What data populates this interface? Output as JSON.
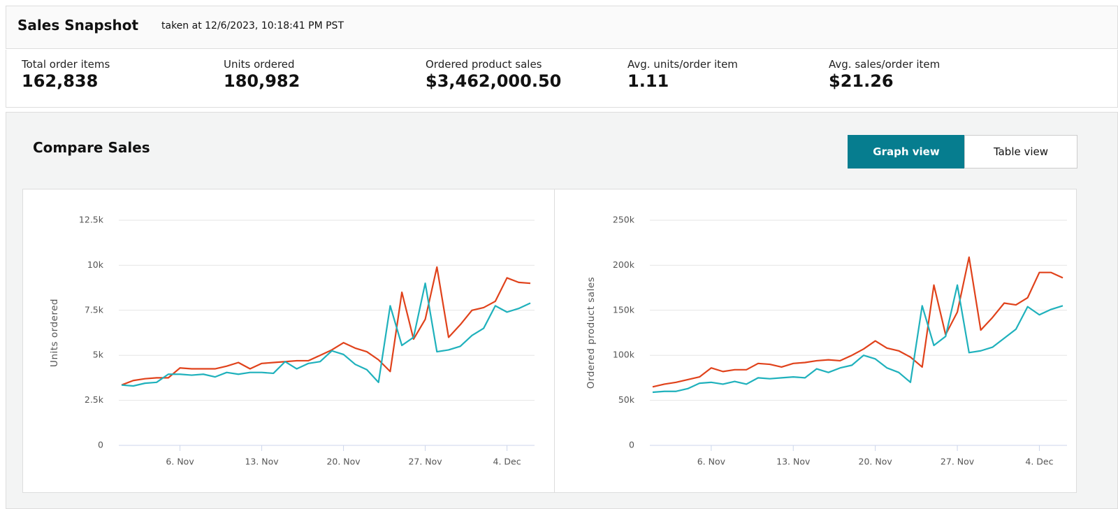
{
  "header": {
    "title": "Sales Snapshot",
    "subtitle": "taken at 12/6/2023, 10:18:41 PM PST"
  },
  "metrics": [
    {
      "label": "Total order items",
      "value": "162,838"
    },
    {
      "label": "Units ordered",
      "value": "180,982"
    },
    {
      "label": "Ordered product sales",
      "value": "$3,462,000.50"
    },
    {
      "label": "Avg. units/order item",
      "value": "1.11"
    },
    {
      "label": "Avg. sales/order item",
      "value": "$21.26"
    }
  ],
  "compare": {
    "title": "Compare Sales",
    "buttons": [
      "Graph view",
      "Table view"
    ]
  },
  "chart_data": [
    {
      "type": "line",
      "ylabel": "Units ordered",
      "categories": [
        null,
        null,
        null,
        null,
        null,
        "6. Nov",
        null,
        null,
        null,
        null,
        null,
        null,
        "13. Nov",
        null,
        null,
        null,
        null,
        null,
        null,
        "20. Nov",
        null,
        null,
        null,
        null,
        null,
        null,
        "27. Nov",
        null,
        null,
        null,
        null,
        null,
        null,
        "4. Dec",
        null,
        null
      ],
      "series": [
        {
          "color": "#e0421b",
          "values": [
            3350,
            3600,
            3700,
            3750,
            3750,
            4300,
            4250,
            4250,
            4250,
            4400,
            4600,
            4250,
            4550,
            4600,
            4650,
            4700,
            4700,
            5000,
            5300,
            5700,
            5400,
            5200,
            4750,
            4100,
            8500,
            5900,
            7000,
            9900,
            6000,
            6700,
            7500,
            7650,
            8000,
            9300,
            9050,
            9000
          ]
        },
        {
          "color": "#1fb1bc",
          "values": [
            3350,
            3300,
            3450,
            3500,
            3950,
            3950,
            3900,
            3950,
            3800,
            4050,
            3950,
            4050,
            4050,
            4000,
            4650,
            4250,
            4550,
            4650,
            5250,
            5050,
            4500,
            4200,
            3500,
            7750,
            5550,
            6000,
            9000,
            5200,
            5300,
            5500,
            6100,
            6500,
            7750,
            7400,
            7600,
            7900
          ]
        }
      ],
      "ylim": [
        0,
        12500
      ],
      "yticks": [
        0,
        {
          "value": 2500,
          "label": "2.5k"
        },
        {
          "value": 5000,
          "label": "5k"
        },
        {
          "value": 7500,
          "label": "7.5k"
        },
        {
          "value": 10000,
          "label": "10k"
        },
        {
          "value": 12500,
          "label": "12.5k"
        }
      ],
      "grid": true
    },
    {
      "type": "line",
      "ylabel": "Ordered product sales",
      "categories": [
        null,
        null,
        null,
        null,
        null,
        "6. Nov",
        null,
        null,
        null,
        null,
        null,
        null,
        "13. Nov",
        null,
        null,
        null,
        null,
        null,
        null,
        "20. Nov",
        null,
        null,
        null,
        null,
        null,
        null,
        "27. Nov",
        null,
        null,
        null,
        null,
        null,
        null,
        "4. Dec",
        null,
        null
      ],
      "series": [
        {
          "color": "#e0421b",
          "values": [
            65000,
            68000,
            70000,
            73000,
            76000,
            86000,
            82000,
            84000,
            84000,
            91000,
            90000,
            87000,
            91000,
            92000,
            94000,
            95000,
            94000,
            100000,
            107000,
            116000,
            108000,
            105000,
            98000,
            87000,
            178000,
            123000,
            148000,
            209000,
            128000,
            142000,
            158000,
            156000,
            164000,
            192000,
            192000,
            186000
          ]
        },
        {
          "color": "#1fb1bc",
          "values": [
            59000,
            60000,
            60000,
            63000,
            69000,
            70000,
            68000,
            71000,
            68000,
            75000,
            74000,
            75000,
            76000,
            75000,
            85000,
            81000,
            86000,
            89000,
            100000,
            96000,
            86000,
            81000,
            70000,
            155000,
            111000,
            121000,
            178000,
            103000,
            105000,
            109000,
            119000,
            129000,
            154000,
            145000,
            151000,
            155000
          ]
        }
      ],
      "ylim": [
        0,
        250000
      ],
      "yticks": [
        0,
        {
          "value": 50000,
          "label": "50k"
        },
        {
          "value": 100000,
          "label": "100k"
        },
        {
          "value": 150000,
          "label": "150k"
        },
        {
          "value": 200000,
          "label": "200k"
        },
        {
          "value": 250000,
          "label": "250k"
        }
      ],
      "grid": true
    }
  ]
}
